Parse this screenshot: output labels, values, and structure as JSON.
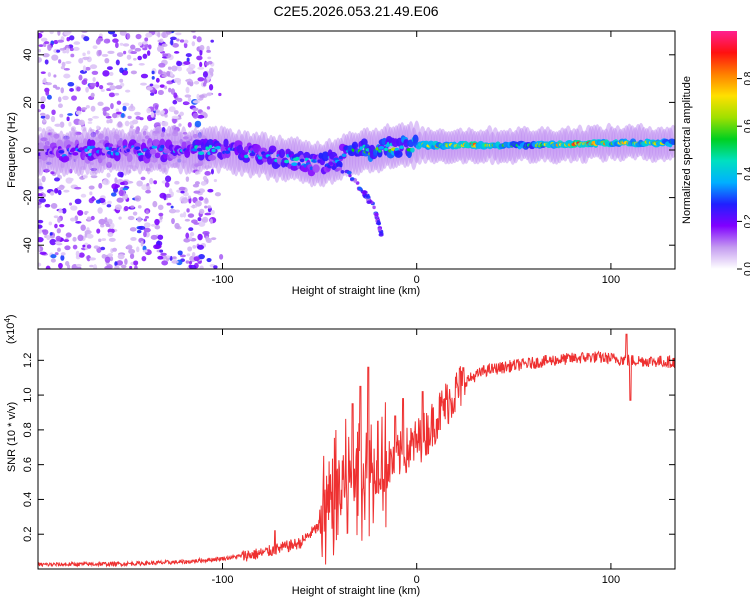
{
  "figure": {
    "title": "C2E5.2026.053.21.49.E06"
  },
  "chart_data": [
    {
      "type": "heatmap",
      "xlabel": "Height of straight line (km)",
      "ylabel": "Frequency (Hz)",
      "xlim": [
        -195,
        133
      ],
      "ylim": [
        -50,
        50
      ],
      "x_ticks": [
        -100,
        0,
        100
      ],
      "y_ticks": [
        -40,
        -20,
        0,
        20,
        40
      ],
      "colorbar": {
        "label": "Normalized spectral amplitude",
        "range": [
          0,
          1
        ],
        "ticks": [
          0,
          0.2,
          0.4,
          0.6,
          0.8
        ],
        "tick_labels": [
          "0.0",
          "0.2",
          "0.4",
          "0.6",
          "0.8"
        ],
        "stops": [
          "#ffffff",
          "#c49bf0",
          "#8000ff",
          "#2020ff",
          "#00b0ff",
          "#00e0c0",
          "#00d020",
          "#a0e000",
          "#ffe000",
          "#ff8000",
          "#ff1010",
          "#ff2090"
        ]
      },
      "band_center": [
        [
          -195,
          -1
        ],
        [
          -120,
          0
        ],
        [
          -100,
          0
        ],
        [
          -90,
          -1
        ],
        [
          -75,
          -3
        ],
        [
          -65,
          -4
        ],
        [
          -55,
          -6
        ],
        [
          -45,
          -5
        ],
        [
          -35,
          -1
        ],
        [
          -25,
          0
        ],
        [
          -15,
          1
        ],
        [
          0,
          2
        ],
        [
          30,
          2
        ],
        [
          60,
          2
        ],
        [
          100,
          3
        ],
        [
          133,
          3
        ]
      ],
      "ridge_strength": [
        [
          -195,
          0.28
        ],
        [
          -120,
          0.4
        ],
        [
          -90,
          0.4
        ],
        [
          -60,
          0.42
        ],
        [
          -40,
          0.45
        ],
        [
          -20,
          0.55
        ],
        [
          0,
          0.7
        ],
        [
          20,
          0.85
        ],
        [
          40,
          0.8
        ],
        [
          60,
          0.6
        ],
        [
          80,
          0.9
        ],
        [
          110,
          0.75
        ],
        [
          133,
          0.7
        ]
      ],
      "noise_region": [
        -195,
        -105
      ],
      "secondary_branch": [
        [
          -45,
          -6
        ],
        [
          -35,
          -10
        ],
        [
          -28,
          -17
        ],
        [
          -22,
          -24
        ],
        [
          -20,
          -30
        ],
        [
          -18,
          -36
        ]
      ]
    },
    {
      "type": "line",
      "xlabel": "Height of straight line (km)",
      "ylabel": "SNR (10 * v/v)",
      "y_multiplier": "(x10^4)",
      "xlim": [
        -195,
        133
      ],
      "ylim": [
        0,
        1.38
      ],
      "x_ticks": [
        -100,
        0,
        100
      ],
      "y_ticks": [
        0.2,
        0.4,
        0.6,
        0.8,
        1.0,
        1.2
      ],
      "y_tick_labels": [
        "0.2",
        "0.4",
        "0.6",
        "0.8",
        "1.0",
        "1.2"
      ],
      "color": "#ee3030",
      "trend": [
        [
          -195,
          0.025
        ],
        [
          -150,
          0.03
        ],
        [
          -120,
          0.04
        ],
        [
          -100,
          0.06
        ],
        [
          -80,
          0.09
        ],
        [
          -60,
          0.15
        ],
        [
          -50,
          0.25
        ],
        [
          -42,
          0.42
        ],
        [
          -35,
          0.5
        ],
        [
          -28,
          0.55
        ],
        [
          -20,
          0.6
        ],
        [
          -15,
          0.6
        ],
        [
          -5,
          0.68
        ],
        [
          5,
          0.78
        ],
        [
          15,
          0.95
        ],
        [
          25,
          1.08
        ],
        [
          35,
          1.14
        ],
        [
          50,
          1.17
        ],
        [
          70,
          1.2
        ],
        [
          90,
          1.22
        ],
        [
          110,
          1.2
        ],
        [
          133,
          1.19
        ]
      ],
      "spikes": [
        [
          -73,
          0.22
        ],
        [
          -33,
          0.95
        ],
        [
          -29,
          1.05
        ],
        [
          -25,
          1.16
        ],
        [
          -20,
          0.85
        ],
        [
          -11,
          0.88
        ],
        [
          -7,
          0.98
        ],
        [
          3,
          1.02
        ],
        [
          108,
          1.35
        ],
        [
          110,
          0.97
        ]
      ]
    }
  ]
}
